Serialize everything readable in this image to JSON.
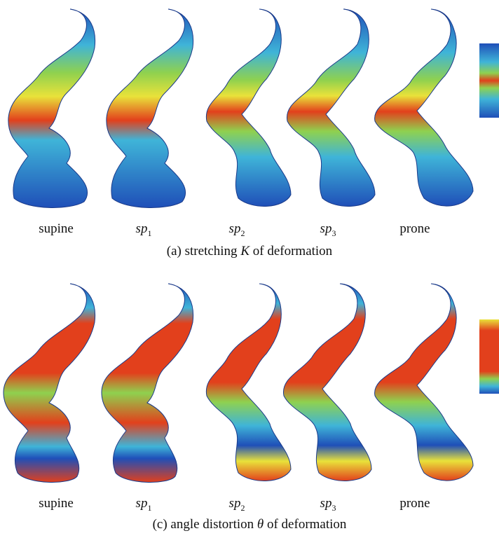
{
  "panel_a": {
    "labels": [
      {
        "text": "supine"
      },
      {
        "italic": "sp",
        "sub": "1"
      },
      {
        "italic": "sp",
        "sub": "2"
      },
      {
        "italic": "sp",
        "sub": "3"
      },
      {
        "text": "prone"
      }
    ],
    "caption_prefix": "(a) stretching ",
    "caption_var": "K",
    "caption_suffix": " of deformation"
  },
  "panel_c": {
    "labels": [
      {
        "text": "supine"
      },
      {
        "italic": "sp",
        "sub": "1"
      },
      {
        "italic": "sp",
        "sub": "2"
      },
      {
        "italic": "sp",
        "sub": "3"
      },
      {
        "text": "prone"
      }
    ],
    "caption_prefix": "(c) angle distortion ",
    "caption_var": "θ",
    "caption_suffix": " of deformation"
  },
  "colors": {
    "blue": "#1f4fb8",
    "cyan": "#3fb4d8",
    "green": "#8fd14f",
    "yellow": "#e9e23a",
    "red": "#e2401c"
  }
}
